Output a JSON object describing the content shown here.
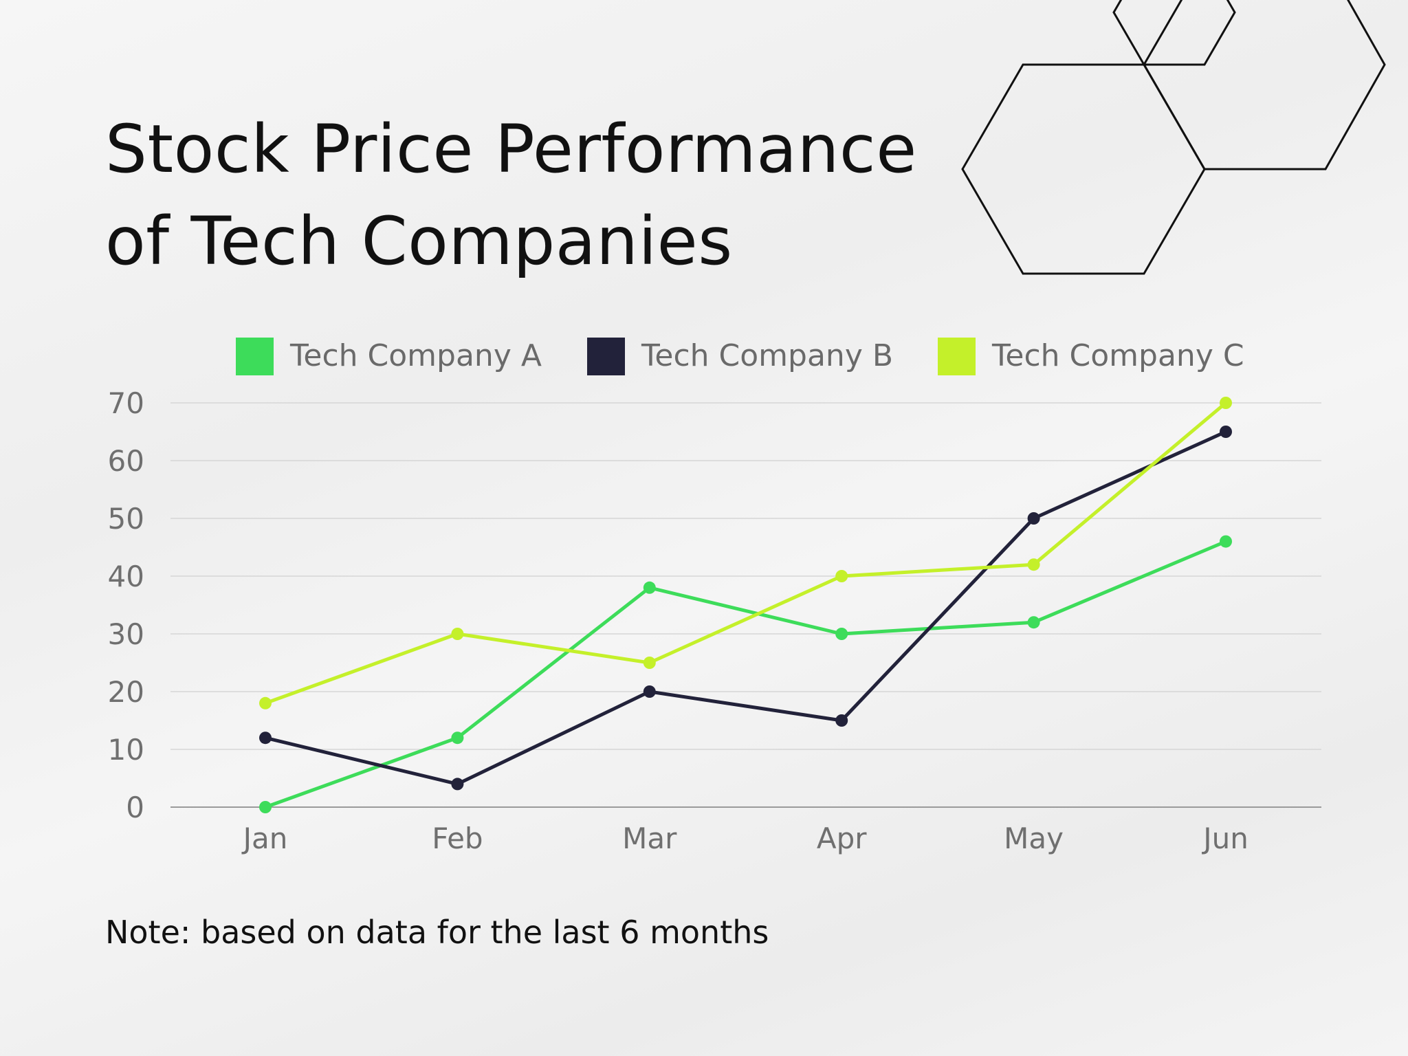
{
  "title_line1": "Stock Price Performance",
  "title_line2": "of Tech Companies",
  "note": "Note: based on data for the last 6 months",
  "colors": {
    "company_a": "#3ddc5a",
    "company_b": "#22223a",
    "company_c": "#c4f02a",
    "grid": "#d6d6d6",
    "axis": "#9a9a9a"
  },
  "chart_data": {
    "type": "line",
    "title": "Stock Price Performance of Tech Companies",
    "xlabel": "",
    "ylabel": "",
    "categories": [
      "Jan",
      "Feb",
      "Mar",
      "Apr",
      "May",
      "Jun"
    ],
    "y_ticks": [
      "0",
      "10",
      "20",
      "30",
      "40",
      "50",
      "60",
      "70"
    ],
    "ylim": [
      0,
      70
    ],
    "grid": true,
    "legend_position": "top",
    "series": [
      {
        "name": "Tech Company A",
        "color_key": "company_a",
        "values": [
          0,
          12,
          38,
          30,
          32,
          46
        ]
      },
      {
        "name": "Tech Company B",
        "color_key": "company_b",
        "values": [
          12,
          4,
          20,
          15,
          50,
          65
        ]
      },
      {
        "name": "Tech Company C",
        "color_key": "company_c",
        "values": [
          18,
          30,
          25,
          40,
          42,
          70
        ]
      }
    ]
  }
}
